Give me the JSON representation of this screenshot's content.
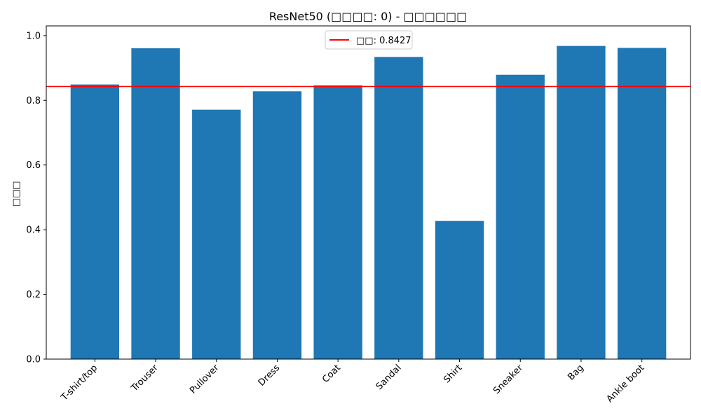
{
  "chart_data": {
    "type": "bar",
    "title": "ResNet50 (□□□□: 0) - □□□□□□",
    "xlabel": "",
    "ylabel": "□□□",
    "categories": [
      "T-shirt/top",
      "Trouser",
      "Pullover",
      "Dress",
      "Coat",
      "Sandal",
      "Shirt",
      "Sneaker",
      "Bag",
      "Ankle boot"
    ],
    "values": [
      0.849,
      0.961,
      0.771,
      0.828,
      0.846,
      0.934,
      0.427,
      0.879,
      0.968,
      0.962
    ],
    "ylim": [
      0,
      1.03
    ],
    "yticks": [
      0.0,
      0.2,
      0.4,
      0.6,
      0.8,
      1.0
    ],
    "ytick_labels": [
      "0.0",
      "0.2",
      "0.4",
      "0.6",
      "0.8",
      "1.0"
    ],
    "bar_color": "#1f77b4",
    "mean_line": {
      "value": 0.8427,
      "color": "#ff0000"
    },
    "legend": {
      "label": "□□: 0.8427",
      "position": "upper center"
    },
    "grid": false
  }
}
